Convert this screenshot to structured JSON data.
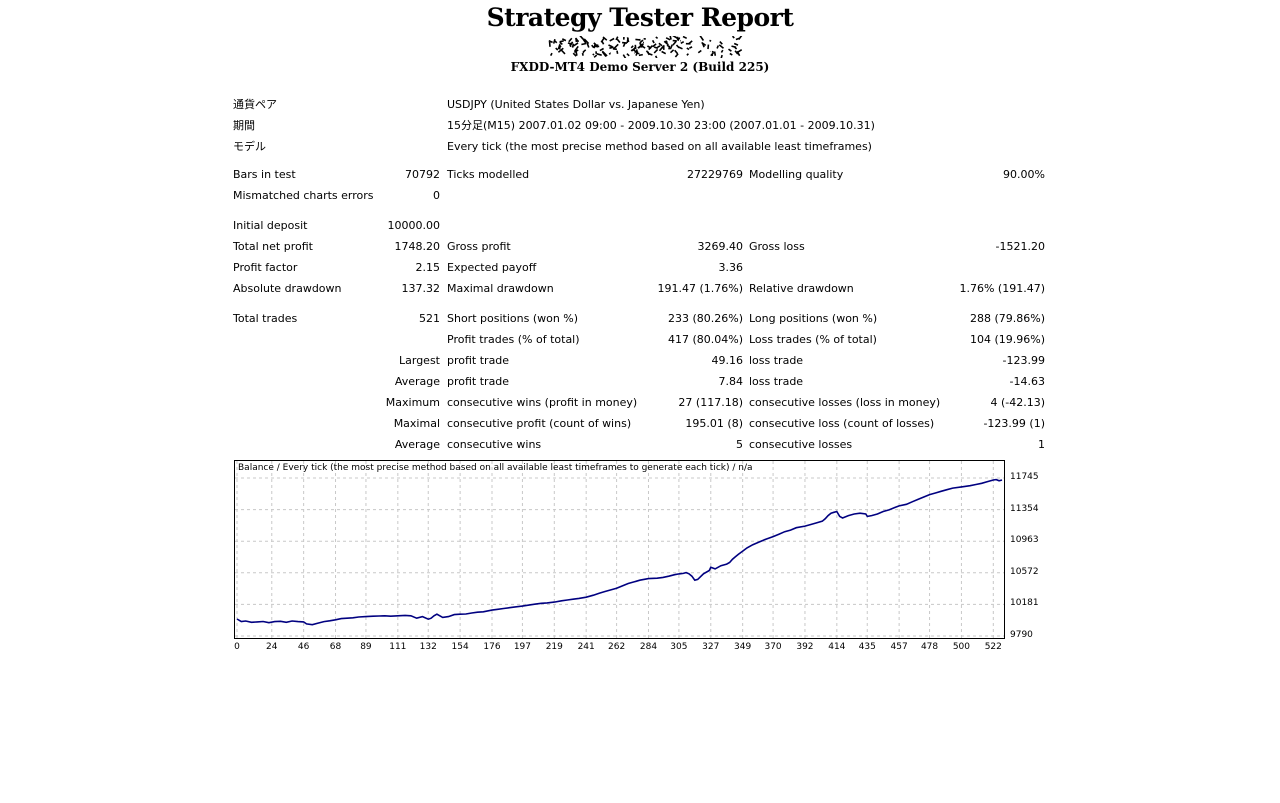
{
  "header": {
    "title": "Strategy Tester Report",
    "server": "FXDD-MT4 Demo Server 2 (Build 225)"
  },
  "info": {
    "symbol_label": "通貨ペア",
    "symbol_value": "USDJPY (United States Dollar vs. Japanese Yen)",
    "period_label": "期間",
    "period_value": "15分足(M15) 2007.01.02 09:00 - 2009.10.30 23:00 (2007.01.01 - 2009.10.31)",
    "model_label": "モデル",
    "model_value": "Every tick (the most precise method based on all available least timeframes)"
  },
  "stats": {
    "bars_label": "Bars in test",
    "bars_value": "70792",
    "ticks_label": "Ticks modelled",
    "ticks_value": "27229769",
    "quality_label": "Modelling quality",
    "quality_value": "90.00%",
    "mismatch_label": "Mismatched charts errors",
    "mismatch_value": "0",
    "deposit_label": "Initial deposit",
    "deposit_value": "10000.00",
    "netprofit_label": "Total net profit",
    "netprofit_value": "1748.20",
    "grossprofit_label": "Gross profit",
    "grossprofit_value": "3269.40",
    "grossloss_label": "Gross loss",
    "grossloss_value": "-1521.20",
    "pf_label": "Profit factor",
    "pf_value": "2.15",
    "payoff_label": "Expected payoff",
    "payoff_value": "3.36",
    "absdd_label": "Absolute drawdown",
    "absdd_value": "137.32",
    "maxdd_label": "Maximal drawdown",
    "maxdd_value": "191.47 (1.76%)",
    "reldd_label": "Relative drawdown",
    "reldd_value": "1.76% (191.47)",
    "trades_label": "Total trades",
    "trades_value": "521",
    "short_label": "Short positions (won %)",
    "short_value": "233 (80.26%)",
    "long_label": "Long positions (won %)",
    "long_value": "288 (79.86%)",
    "profittrades_label": "Profit trades (% of total)",
    "profittrades_value": "417 (80.04%)",
    "losstrades_label": "Loss trades (% of total)",
    "losstrades_value": "104 (19.96%)",
    "largest_label": "Largest",
    "largest_profit_label": "profit trade",
    "largest_profit_value": "49.16",
    "largest_loss_label": "loss trade",
    "largest_loss_value": "-123.99",
    "average_label": "Average",
    "average_profit_label": "profit trade",
    "average_profit_value": "7.84",
    "average_loss_label": "loss trade",
    "average_loss_value": "-14.63",
    "maximum_label": "Maximum",
    "max_wins_label": "consecutive wins (profit in money)",
    "max_wins_value": "27 (117.18)",
    "max_losses_label": "consecutive losses (loss in money)",
    "max_losses_value": "4 (-42.13)",
    "maximal_label": "Maximal",
    "maximal_profit_label": "consecutive profit (count of wins)",
    "maximal_profit_value": "195.01 (8)",
    "maximal_loss_label": "consecutive loss (count of losses)",
    "maximal_loss_value": "-123.99 (1)",
    "average2_label": "Average",
    "avg_wins_label": "consecutive wins",
    "avg_wins_value": "5",
    "avg_losses_label": "consecutive losses",
    "avg_losses_value": "1"
  },
  "chart_data": {
    "type": "line",
    "title": "Balance / Every tick (the most precise method based on all available least timeframes to generate each tick) / n/a",
    "xticks": [
      0,
      24,
      46,
      68,
      89,
      111,
      132,
      154,
      176,
      197,
      219,
      241,
      262,
      284,
      305,
      327,
      349,
      370,
      392,
      414,
      435,
      457,
      478,
      500,
      522
    ],
    "yticks": [
      9790,
      10181,
      10572,
      10963,
      11354,
      11745
    ],
    "xlim": [
      0,
      528
    ],
    "ylim": [
      9790,
      11745
    ],
    "line_color": "#000080",
    "grid": true,
    "series": [
      {
        "x": [
          0,
          3,
          6,
          10,
          14,
          18,
          22,
          26,
          30,
          34,
          38,
          42,
          46,
          48,
          52,
          56,
          60,
          64,
          68,
          72,
          76,
          80,
          84,
          89,
          94,
          98,
          102,
          106,
          111,
          116,
          120,
          124,
          128,
          132,
          134,
          136,
          138,
          142,
          146,
          150,
          154,
          158,
          162,
          166,
          170,
          176,
          180,
          184,
          188,
          192,
          197,
          202,
          206,
          210,
          214,
          219,
          224,
          228,
          232,
          236,
          241,
          246,
          250,
          254,
          258,
          262,
          266,
          270,
          274,
          278,
          284,
          290,
          294,
          298,
          302,
          305,
          308,
          310,
          312,
          314,
          316,
          318,
          322,
          326,
          327,
          330,
          334,
          338,
          340,
          342,
          344,
          346,
          349,
          352,
          356,
          360,
          364,
          370,
          374,
          378,
          382,
          386,
          392,
          396,
          400,
          404,
          406,
          408,
          410,
          412,
          414,
          416,
          418,
          422,
          426,
          430,
          434,
          435,
          438,
          442,
          446,
          450,
          454,
          457,
          462,
          466,
          470,
          474,
          478,
          482,
          486,
          490,
          494,
          500,
          506,
          510,
          514,
          518,
          522,
          524,
          526,
          528
        ],
        "y": [
          10000,
          9968,
          9975,
          9960,
          9965,
          9970,
          9955,
          9968,
          9972,
          9960,
          9975,
          9968,
          9965,
          9940,
          9930,
          9950,
          9968,
          9978,
          9990,
          10005,
          10010,
          10015,
          10025,
          10030,
          10035,
          10038,
          10040,
          10035,
          10040,
          10045,
          10040,
          10010,
          10030,
          9998,
          10010,
          10040,
          10060,
          10020,
          10030,
          10055,
          10060,
          10062,
          10075,
          10085,
          10090,
          10110,
          10120,
          10130,
          10140,
          10150,
          10160,
          10175,
          10185,
          10195,
          10200,
          10210,
          10225,
          10235,
          10245,
          10255,
          10270,
          10295,
          10320,
          10340,
          10360,
          10380,
          10410,
          10440,
          10460,
          10480,
          10500,
          10505,
          10515,
          10530,
          10548,
          10558,
          10565,
          10575,
          10560,
          10530,
          10480,
          10490,
          10560,
          10600,
          10640,
          10620,
          10660,
          10680,
          10700,
          10740,
          10770,
          10800,
          10840,
          10880,
          10920,
          10950,
          10980,
          11020,
          11050,
          11080,
          11100,
          11130,
          11150,
          11170,
          11190,
          11210,
          11240,
          11280,
          11310,
          11320,
          11330,
          11270,
          11250,
          11280,
          11300,
          11310,
          11300,
          11270,
          11280,
          11300,
          11330,
          11350,
          11380,
          11400,
          11420,
          11450,
          11480,
          11510,
          11540,
          11560,
          11580,
          11600,
          11620,
          11635,
          11650,
          11665,
          11680,
          11700,
          11720,
          11725,
          11710,
          11720
        ]
      }
    ]
  }
}
